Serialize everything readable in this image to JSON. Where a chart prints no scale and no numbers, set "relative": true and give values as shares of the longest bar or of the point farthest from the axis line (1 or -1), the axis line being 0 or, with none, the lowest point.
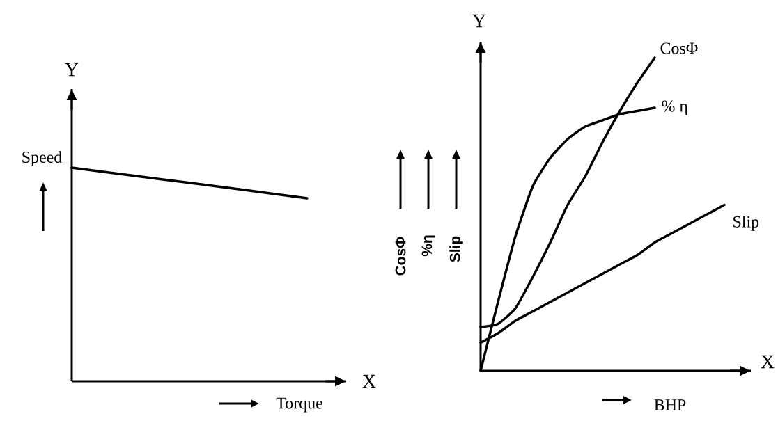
{
  "chart_data": [
    {
      "type": "line",
      "relative": true,
      "ylabel": "Speed",
      "xlabel": "Torque",
      "annotations": [
        "Y",
        "X"
      ],
      "categories": [
        null,
        null,
        null,
        null,
        null
      ],
      "series": [
        {
          "color": "#000000",
          "values": [
            1,
            0.964,
            0.929,
            0.893,
            0.857
          ]
        }
      ]
    },
    {
      "type": "line",
      "relative": true,
      "xlabel": "BHP",
      "annotations": [
        "Y",
        "X",
        "CosΦ",
        "%η",
        "Slip"
      ],
      "categories": [
        null,
        null,
        null,
        null,
        null,
        null,
        null,
        null,
        null,
        null,
        null,
        null,
        null,
        null,
        null
      ],
      "series": [
        {
          "name": "CosΦ",
          "color": "#000000",
          "values": [
            0.14,
            0.15,
            0.2,
            0.3,
            0.41,
            0.53,
            0.62,
            0.73,
            0.83,
            0.92,
            1,
            null,
            null,
            null,
            null
          ]
        },
        {
          "name": "% η",
          "color": "#000000",
          "values": [
            0,
            0.22,
            0.43,
            0.59,
            0.68,
            0.74,
            0.78,
            0.8,
            0.82,
            0.83,
            0.84,
            null,
            null,
            null,
            null
          ]
        },
        {
          "name": "Slip",
          "color": "#000000",
          "values": [
            0.09,
            0.12,
            0.16,
            0.19,
            0.22,
            0.25,
            0.28,
            0.31,
            0.34,
            0.37,
            0.41,
            0.44,
            0.47,
            0.5,
            0.53
          ]
        }
      ]
    }
  ]
}
